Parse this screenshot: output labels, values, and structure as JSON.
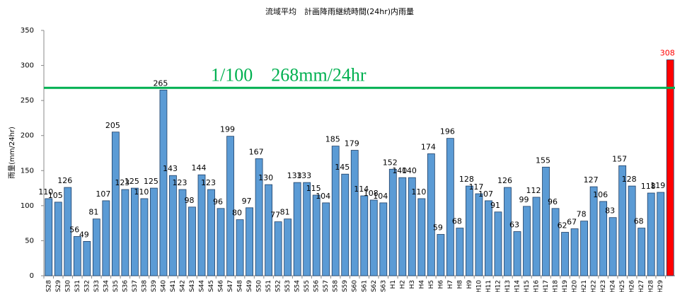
{
  "chart_data": {
    "type": "bar",
    "title": "流域平均　計画降雨継続時間(24hr)内雨量",
    "y_label": "雨量(mm/24hr)",
    "categories": [
      "S28",
      "S29",
      "S30",
      "S31",
      "S32",
      "S33",
      "S34",
      "S35",
      "S36",
      "S37",
      "S38",
      "S39",
      "S40",
      "S41",
      "S42",
      "S43",
      "S44",
      "S45",
      "S46",
      "S47",
      "S48",
      "S49",
      "S50",
      "S51",
      "S52",
      "S53",
      "S54",
      "S55",
      "S56",
      "S57",
      "S58",
      "S59",
      "S60",
      "S61",
      "S62",
      "S63",
      "H1",
      "H2",
      "H3",
      "H4",
      "H5",
      "H6",
      "H7",
      "H8",
      "H9",
      "H10",
      "H11",
      "H12",
      "H13",
      "H14",
      "H15",
      "H16",
      "H17",
      "H18",
      "H19",
      "H20",
      "H21",
      "H22",
      "H23",
      "H24",
      "H25",
      "H26",
      "H27",
      "H28",
      "H29",
      null
    ],
    "values": [
      110,
      105,
      126,
      56,
      49,
      81,
      107,
      205,
      123,
      125,
      110,
      125,
      265,
      143,
      123,
      98,
      144,
      123,
      96,
      199,
      80,
      97,
      167,
      130,
      77,
      81,
      133,
      133,
      115,
      104,
      185,
      145,
      179,
      114,
      108,
      104,
      152,
      140,
      140,
      110,
      174,
      59,
      196,
      68,
      128,
      117,
      107,
      91,
      126,
      63,
      99,
      112,
      155,
      96,
      62,
      67,
      78,
      127,
      106,
      83,
      157,
      128,
      68,
      118,
      119,
      308
    ],
    "color": "#5b9bd5",
    "colors": [
      "#5b9bd5",
      "#5b9bd5",
      "#5b9bd5",
      "#5b9bd5",
      "#5b9bd5",
      "#5b9bd5",
      "#5b9bd5",
      "#5b9bd5",
      "#5b9bd5",
      "#5b9bd5",
      "#5b9bd5",
      "#5b9bd5",
      "#5b9bd5",
      "#5b9bd5",
      "#5b9bd5",
      "#5b9bd5",
      "#5b9bd5",
      "#5b9bd5",
      "#5b9bd5",
      "#5b9bd5",
      "#5b9bd5",
      "#5b9bd5",
      "#5b9bd5",
      "#5b9bd5",
      "#5b9bd5",
      "#5b9bd5",
      "#5b9bd5",
      "#5b9bd5",
      "#5b9bd5",
      "#5b9bd5",
      "#5b9bd5",
      "#5b9bd5",
      "#5b9bd5",
      "#5b9bd5",
      "#5b9bd5",
      "#5b9bd5",
      "#5b9bd5",
      "#5b9bd5",
      "#5b9bd5",
      "#5b9bd5",
      "#5b9bd5",
      "#5b9bd5",
      "#5b9bd5",
      "#5b9bd5",
      "#5b9bd5",
      "#5b9bd5",
      "#5b9bd5",
      "#5b9bd5",
      "#5b9bd5",
      "#5b9bd5",
      "#5b9bd5",
      "#5b9bd5",
      "#5b9bd5",
      "#5b9bd5",
      "#5b9bd5",
      "#5b9bd5",
      "#5b9bd5",
      "#5b9bd5",
      "#5b9bd5",
      "#5b9bd5",
      "#5b9bd5",
      "#5b9bd5",
      "#5b9bd5",
      "#5b9bd5",
      "#5b9bd5",
      "#ff0000"
    ],
    "ylim": [
      0,
      350
    ],
    "yticks": [
      0,
      50,
      100,
      150,
      200,
      250,
      300,
      350
    ],
    "reference_line": {
      "value": 268,
      "label": "1/100　268mm/24hr",
      "color": "#00b050"
    }
  }
}
